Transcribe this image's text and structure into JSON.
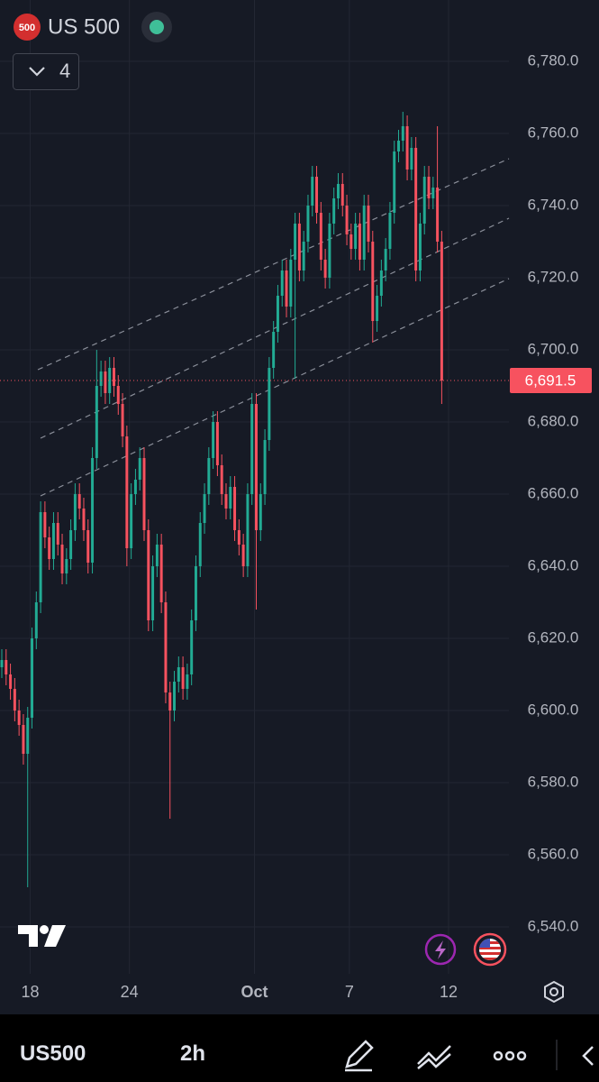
{
  "chart_data": {
    "type": "candlestick",
    "title": "US 500",
    "badge": "500",
    "indicator_count": "4",
    "open": [
      6612,
      6614,
      6610,
      6606,
      6600,
      6596,
      6588,
      6598,
      6620,
      6630,
      6655,
      6648,
      6642,
      6652,
      6646,
      6638,
      6642,
      6650,
      6660,
      6656,
      6650,
      6641,
      6670,
      6690,
      6694,
      6688,
      6695,
      6690,
      6685,
      6676,
      6645,
      6660,
      6664,
      6670,
      6650,
      6625,
      6640,
      6646,
      6630,
      6605,
      6600,
      6608,
      6612,
      6606,
      6610,
      6625,
      6640,
      6652,
      6660,
      6670,
      6680,
      6668,
      6660,
      6656,
      6662,
      6650,
      6646,
      6640,
      6660,
      6685,
      6650,
      6660,
      6675,
      6695,
      6705,
      6715,
      6722,
      6712,
      6725,
      6735,
      6722,
      6730,
      6740,
      6748,
      6738,
      6725,
      6720,
      6735,
      6742,
      6746,
      6740,
      6732,
      6728,
      6735,
      6725,
      6740,
      6730,
      6708,
      6715,
      6722,
      6728,
      6738,
      6755,
      6758,
      6762,
      6750,
      6756,
      6722,
      6735,
      6748,
      6742,
      6745,
      6730
    ],
    "high": [
      6617,
      6617,
      6613,
      6609,
      6603,
      6599,
      6601,
      6623,
      6633,
      6658,
      6658,
      6651,
      6655,
      6655,
      6649,
      6645,
      6653,
      6663,
      6663,
      6659,
      6653,
      6673,
      6700,
      6697,
      6697,
      6698,
      6698,
      6693,
      6688,
      6679,
      6663,
      6667,
      6673,
      6673,
      6653,
      6643,
      6649,
      6649,
      6633,
      6608,
      6611,
      6615,
      6615,
      6613,
      6628,
      6643,
      6655,
      6663,
      6673,
      6683,
      6683,
      6671,
      6663,
      6665,
      6665,
      6653,
      6649,
      6663,
      6688,
      6688,
      6663,
      6678,
      6698,
      6708,
      6718,
      6725,
      6725,
      6728,
      6738,
      6738,
      6733,
      6743,
      6751,
      6751,
      6741,
      6728,
      6738,
      6745,
      6749,
      6749,
      6743,
      6735,
      6738,
      6738,
      6743,
      6743,
      6733,
      6718,
      6725,
      6731,
      6741,
      6758,
      6761,
      6766,
      6765,
      6759,
      6759,
      6738,
      6751,
      6751,
      6748,
      6762,
      6733
    ],
    "low": [
      6609,
      6607,
      6603,
      6597,
      6593,
      6585,
      6551,
      6595,
      6617,
      6627,
      6645,
      6639,
      6639,
      6643,
      6635,
      6635,
      6639,
      6647,
      6653,
      6647,
      6638,
      6638,
      6667,
      6687,
      6685,
      6685,
      6687,
      6682,
      6673,
      6640,
      6642,
      6657,
      6661,
      6647,
      6622,
      6622,
      6637,
      6627,
      6602,
      6570,
      6597,
      6605,
      6603,
      6603,
      6607,
      6622,
      6637,
      6649,
      6657,
      6667,
      6665,
      6657,
      6653,
      6653,
      6647,
      6643,
      6637,
      6637,
      6657,
      6628,
      6647,
      6657,
      6672,
      6692,
      6702,
      6712,
      6709,
      6709,
      6692,
      6719,
      6719,
      6727,
      6737,
      6735,
      6722,
      6717,
      6717,
      6732,
      6739,
      6737,
      6729,
      6725,
      6725,
      6722,
      6722,
      6727,
      6702,
      6705,
      6712,
      6719,
      6725,
      6735,
      6752,
      6755,
      6747,
      6747,
      6719,
      6719,
      6732,
      6739,
      6739,
      6727,
      6685
    ],
    "close": [
      6614,
      6610,
      6606,
      6600,
      6596,
      6588,
      6598,
      6620,
      6630,
      6655,
      6648,
      6642,
      6652,
      6646,
      6638,
      6642,
      6650,
      6660,
      6656,
      6650,
      6641,
      6670,
      6690,
      6694,
      6688,
      6695,
      6690,
      6685,
      6676,
      6645,
      6660,
      6664,
      6670,
      6650,
      6625,
      6640,
      6646,
      6630,
      6605,
      6600,
      6608,
      6612,
      6606,
      6610,
      6625,
      6640,
      6652,
      6660,
      6670,
      6680,
      6668,
      6660,
      6656,
      6662,
      6650,
      6646,
      6640,
      6660,
      6685,
      6650,
      6660,
      6675,
      6695,
      6705,
      6715,
      6722,
      6712,
      6725,
      6735,
      6722,
      6730,
      6740,
      6748,
      6738,
      6725,
      6720,
      6735,
      6742,
      6746,
      6740,
      6732,
      6728,
      6735,
      6725,
      6740,
      6730,
      6708,
      6715,
      6722,
      6728,
      6738,
      6755,
      6758,
      6762,
      6750,
      6756,
      6722,
      6735,
      6748,
      6742,
      6745,
      6730,
      6691.5
    ],
    "up_color": "#22ab94",
    "down_color": "#f7525f",
    "xlim": [
      0,
      118
    ],
    "xticks": [
      {
        "value": 7,
        "label": "18"
      },
      {
        "value": 30,
        "label": "24"
      },
      {
        "value": 59,
        "label": "Oct"
      },
      {
        "value": 81,
        "label": "7"
      },
      {
        "value": 104,
        "label": "12"
      }
    ],
    "ylim": [
      6527,
      6797
    ],
    "yticks": [
      {
        "value": 6540,
        "label": "6,540.0"
      },
      {
        "value": 6560,
        "label": "6,560.0"
      },
      {
        "value": 6580,
        "label": "6,580.0"
      },
      {
        "value": 6600,
        "label": "6,600.0"
      },
      {
        "value": 6620,
        "label": "6,620.0"
      },
      {
        "value": 6640,
        "label": "6,640.0"
      },
      {
        "value": 6660,
        "label": "6,660.0"
      },
      {
        "value": 6680,
        "label": "6,680.0"
      },
      {
        "value": 6700,
        "label": "6,700.0"
      },
      {
        "value": 6720,
        "label": "6,720.0"
      },
      {
        "value": 6740,
        "label": "6,740.0"
      },
      {
        "value": 6760,
        "label": "6,760.0"
      },
      {
        "value": 6780,
        "label": "6,780.0"
      }
    ],
    "grid": true,
    "last_price": {
      "value": 6691.5,
      "label": "6,691.5"
    }
  },
  "toolbar": {
    "symbol": "US500",
    "interval": "2h"
  }
}
